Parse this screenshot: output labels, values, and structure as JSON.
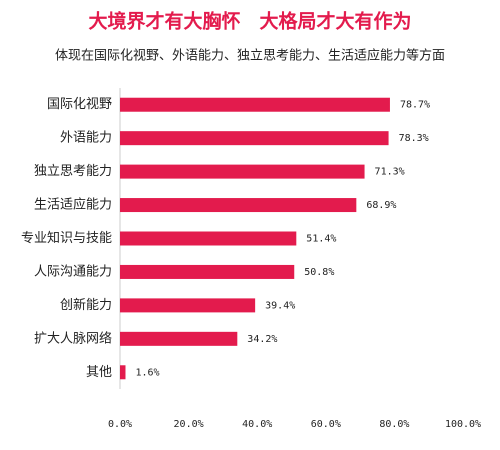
{
  "chart_data": {
    "type": "bar",
    "orientation": "horizontal",
    "title": "大境界才有大胸怀　大格局才大有作为",
    "subtitle": "体现在国际化视野、外语能力、独立思考能力、生活适应能力等方面",
    "categories": [
      "国际化视野",
      "外语能力",
      "独立思考能力",
      "生活适应能力",
      "专业知识与技能",
      "人际沟通能力",
      "创新能力",
      "扩大人脉网络",
      "其他"
    ],
    "values": [
      78.7,
      78.3,
      71.3,
      68.9,
      51.4,
      50.8,
      39.4,
      34.2,
      1.6
    ],
    "value_labels": [
      "78.7%",
      "78.3%",
      "71.3%",
      "68.9%",
      "51.4%",
      "50.8%",
      "39.4%",
      "34.2%",
      "1.6%"
    ],
    "color": "#e31b4d",
    "xlim": [
      0,
      100
    ],
    "xticks": [
      {
        "value": 0,
        "label": "0.0%"
      },
      {
        "value": 20,
        "label": "20.0%"
      },
      {
        "value": 40,
        "label": "40.0%"
      },
      {
        "value": 60,
        "label": "60.0%"
      },
      {
        "value": 80,
        "label": "80.0%"
      },
      {
        "value": 100,
        "label": "100.0%"
      }
    ],
    "grid": false
  }
}
